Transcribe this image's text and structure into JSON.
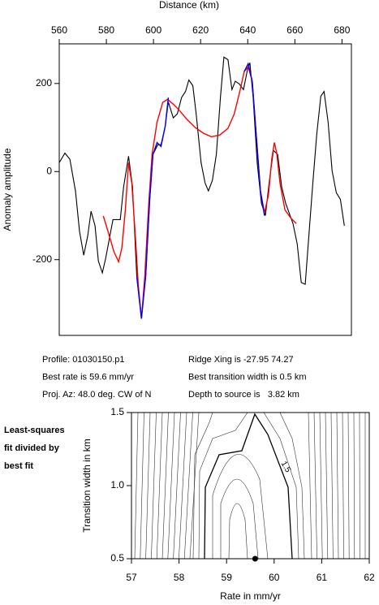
{
  "chart_data": [
    {
      "type": "line",
      "title": "Distance (km)",
      "y_label": "Anomaly amplitude",
      "x_axis_position": "top",
      "xlim": [
        560,
        684
      ],
      "xticks": [
        560,
        580,
        600,
        620,
        640,
        660,
        680
      ],
      "ylim": [
        -372,
        290
      ],
      "yticks": [
        -200,
        0,
        200
      ],
      "series": [
        {
          "color": "#000000",
          "x": [
            560,
            562.4,
            564.5,
            566.9,
            568.6,
            570.4,
            572.1,
            573.5,
            575.2,
            576.6,
            578.3,
            579.7,
            581.0,
            582.8,
            585.9,
            587.3,
            589.4,
            591.1,
            592.9,
            594.9,
            596.7,
            598.4,
            599.8,
            601.8,
            603.2,
            605.0,
            606.3,
            608.4,
            610.1,
            611.9,
            613.6,
            615.0,
            616.7,
            618.1,
            620.2,
            621.9,
            623.3,
            625.0,
            626.7,
            628.4,
            629.9,
            631.6,
            633.3,
            634.7,
            636.4,
            638.2,
            639.9,
            640.9,
            642.3,
            644.0,
            645.8,
            647.5,
            649.2,
            650.9,
            652.7,
            654.4,
            656.1,
            659.2,
            661.0,
            662.7,
            664.4,
            665.8,
            667.5,
            669.3,
            671.0,
            672.4,
            674.1,
            675.8,
            677.6,
            679.3,
            681.0
          ],
          "values": [
            20,
            42,
            28,
            -44,
            -136,
            -190,
            -146,
            -90,
            -123,
            -203,
            -230,
            -197,
            -160,
            -109,
            -109,
            -35,
            35,
            -35,
            -238,
            -330,
            -238,
            -63,
            39,
            61,
            61,
            103,
            158,
            122,
            131,
            168,
            182,
            208,
            195,
            131,
            20,
            -26,
            -44,
            -20,
            39,
            168,
            260,
            254,
            186,
            205,
            199,
            186,
            232,
            247,
            168,
            20,
            -72,
            -100,
            -20,
            48,
            39,
            -35,
            -72,
            -118,
            -164,
            -252,
            -256,
            -155,
            -35,
            85,
            171,
            182,
            112,
            2,
            -48,
            -63,
            -123
          ]
        },
        {
          "color": "#ff0000",
          "x": [
            578.7,
            580.7,
            583.2,
            585.2,
            586.6,
            588.0,
            589.4,
            590.8,
            592.5,
            593.5,
            594.9,
            596.3,
            598.0,
            599.4,
            601.5,
            603.9,
            606.0,
            608.4,
            610.8,
            614.3,
            617.7,
            621.2,
            624.6,
            628.1,
            631.6,
            634.3,
            636.8,
            638.5,
            640.2,
            641.9,
            643.7,
            645.4,
            647.1,
            648.8,
            650.2,
            651.3,
            652.3,
            653.7,
            655.8,
            658.2,
            660.6
          ],
          "values": [
            -101,
            -136,
            -182,
            -205,
            -173,
            -90,
            20,
            -26,
            -164,
            -256,
            -334,
            -238,
            -72,
            39,
            112,
            157,
            164,
            153,
            140,
            118,
            100,
            87,
            79,
            83,
            98,
            131,
            186,
            227,
            238,
            205,
            76,
            -44,
            -94,
            -53,
            29,
            66,
            42,
            -26,
            -87,
            -105,
            -118
          ]
        },
        {
          "color": "#0000ff",
          "x": [
            592.9,
            594.9,
            596.7,
            598.4,
            599.8,
            601.5,
            603.2,
            605.0,
            606.3,
            null,
            638.5,
            640.2,
            641.9,
            643.7,
            645.4,
            647.1
          ],
          "values": [
            -238,
            -334,
            -238,
            -63,
            39,
            66,
            57,
            103,
            168,
            null,
            227,
            245,
            205,
            76,
            -44,
            -100
          ]
        }
      ]
    },
    {
      "type": "contour",
      "x_label": "Rate in mm/yr",
      "y_label": "Transition width in km",
      "xlim": [
        57,
        62
      ],
      "xticks": [
        57,
        58,
        59,
        60,
        61,
        62
      ],
      "ylim": [
        0.5,
        1.5
      ],
      "yticks": [
        0.5,
        {
          "value": 1,
          "label": "1.0"
        },
        1.5
      ],
      "contour_labels": [
        1.5
      ],
      "best_point": {
        "x": 59.6,
        "y": 0.5
      }
    }
  ],
  "profile_info": {
    "left": [
      "Profile: 01030150.p1",
      "Best rate is 59.6 mm/yr",
      "Proj. Az: 48.0 deg. CW of N"
    ],
    "right": [
      "Ridge Xing is -27.95 74.27",
      "Best transition width is 0.5 km",
      "Depth to source is   3.82 km"
    ]
  },
  "panel_note": [
    "Least-squares",
    "fit divided by",
    "best fit"
  ]
}
